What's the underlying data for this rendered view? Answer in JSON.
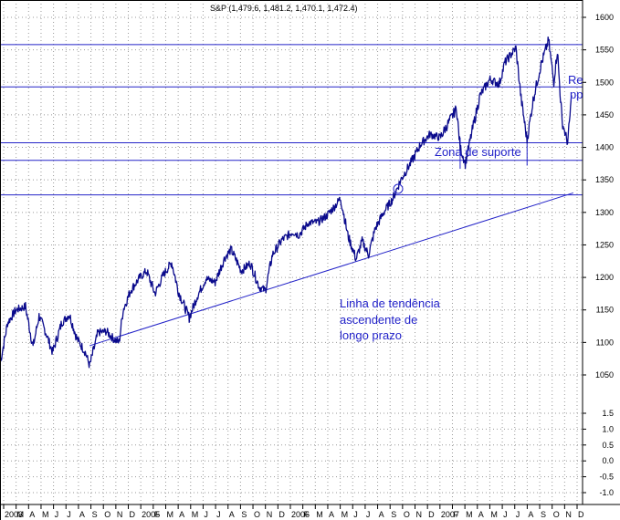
{
  "chart_data": {
    "type": "line",
    "title": "S&P (1,479.6, 1,481.2, 1,470.1, 1,472.4)",
    "colors": {
      "price": "#0a0a8c",
      "lines": "#2323c8",
      "annotation": "#1f1fc8",
      "grid": "#9a9a9a"
    },
    "grid": true,
    "y_upper": {
      "range": [
        1050,
        1600
      ],
      "ticks": [
        "1600",
        "1550",
        "1500",
        "1450",
        "1400",
        "1350",
        "1300",
        "1250",
        "1200",
        "1150",
        "1100",
        "1050"
      ]
    },
    "y_lower": {
      "range": [
        -1.0,
        1.5
      ],
      "ticks": [
        "1.5",
        "1.0",
        "0.5",
        "0.0",
        "-0.5",
        "-1.0"
      ]
    },
    "x_labels": [
      "2003",
      "M",
      "A",
      "M",
      "J",
      "J",
      "A",
      "S",
      "O",
      "N",
      "D",
      "2005",
      "F",
      "M",
      "A",
      "M",
      "J",
      "J",
      "A",
      "S",
      "O",
      "N",
      "D",
      "2006",
      "F",
      "M",
      "A",
      "M",
      "J",
      "J",
      "A",
      "S",
      "O",
      "N",
      "D",
      "2007",
      "F",
      "M",
      "A",
      "M",
      "J",
      "J",
      "A",
      "S",
      "O",
      "N",
      "D"
    ],
    "horizontal_lines": [
      1558,
      1493,
      1407,
      1380,
      1327
    ],
    "trendline": {
      "from": [
        "2004-08-13",
        1095
      ],
      "to": [
        "2007-12-10",
        1330
      ]
    },
    "annotations": {
      "support_zone": "Zona de suporte",
      "trend_line": [
        "Linha de tendência",
        "ascendente de",
        "longo prazo"
      ],
      "cut_text": [
        "Re",
        "pp"
      ]
    },
    "series": [
      {
        "values": [
          [
            "2004-01-02",
            1070
          ],
          [
            "2004-01-20",
            1130
          ],
          [
            "2004-02-10",
            1150
          ],
          [
            "2004-03-05",
            1155
          ],
          [
            "2004-03-24",
            1093
          ],
          [
            "2004-04-08",
            1141
          ],
          [
            "2004-04-27",
            1112
          ],
          [
            "2004-05-12",
            1085
          ],
          [
            "2004-06-04",
            1130
          ],
          [
            "2004-06-23",
            1143
          ],
          [
            "2004-07-12",
            1106
          ],
          [
            "2004-08-02",
            1085
          ],
          [
            "2004-08-13",
            1064
          ],
          [
            "2004-09-03",
            1115
          ],
          [
            "2004-09-24",
            1117
          ],
          [
            "2004-10-13",
            1105
          ],
          [
            "2004-10-26",
            1100
          ],
          [
            "2004-11-05",
            1150
          ],
          [
            "2004-11-24",
            1180
          ],
          [
            "2004-12-17",
            1200
          ],
          [
            "2005-01-03",
            1210
          ],
          [
            "2005-01-24",
            1175
          ],
          [
            "2005-02-15",
            1205
          ],
          [
            "2005-03-07",
            1223
          ],
          [
            "2005-03-24",
            1178
          ],
          [
            "2005-04-20",
            1138
          ],
          [
            "2005-05-10",
            1171
          ],
          [
            "2005-06-01",
            1198
          ],
          [
            "2005-06-24",
            1193
          ],
          [
            "2005-07-18",
            1230
          ],
          [
            "2005-08-03",
            1243
          ],
          [
            "2005-08-29",
            1210
          ],
          [
            "2005-09-20",
            1222
          ],
          [
            "2005-10-13",
            1185
          ],
          [
            "2005-10-28",
            1180
          ],
          [
            "2005-11-15",
            1235
          ],
          [
            "2005-12-09",
            1258
          ],
          [
            "2006-01-05",
            1270
          ],
          [
            "2006-01-20",
            1265
          ],
          [
            "2006-02-13",
            1284
          ],
          [
            "2006-03-09",
            1285
          ],
          [
            "2006-03-31",
            1295
          ],
          [
            "2006-04-21",
            1310
          ],
          [
            "2006-05-05",
            1322
          ],
          [
            "2006-05-23",
            1265
          ],
          [
            "2006-06-13",
            1228
          ],
          [
            "2006-06-28",
            1256
          ],
          [
            "2006-07-14",
            1235
          ],
          [
            "2006-07-31",
            1275
          ],
          [
            "2006-08-21",
            1300
          ],
          [
            "2006-09-12",
            1320
          ],
          [
            "2006-10-03",
            1350
          ],
          [
            "2006-10-27",
            1375
          ],
          [
            "2006-11-22",
            1405
          ],
          [
            "2006-12-15",
            1420
          ],
          [
            "2007-01-10",
            1415
          ],
          [
            "2007-02-20",
            1460
          ],
          [
            "2007-03-01",
            1400
          ],
          [
            "2007-03-14",
            1375
          ],
          [
            "2007-03-30",
            1422
          ],
          [
            "2007-04-20",
            1480
          ],
          [
            "2007-05-15",
            1505
          ],
          [
            "2007-06-07",
            1497
          ],
          [
            "2007-06-21",
            1530
          ],
          [
            "2007-07-19",
            1553
          ],
          [
            "2007-08-01",
            1475
          ],
          [
            "2007-08-16",
            1411
          ],
          [
            "2007-08-31",
            1472
          ],
          [
            "2007-09-19",
            1525
          ],
          [
            "2007-10-09",
            1565
          ],
          [
            "2007-10-22",
            1500
          ],
          [
            "2007-10-31",
            1549
          ],
          [
            "2007-11-12",
            1439
          ],
          [
            "2007-11-26",
            1407
          ],
          [
            "2007-12-06",
            1480
          ]
        ]
      }
    ]
  }
}
